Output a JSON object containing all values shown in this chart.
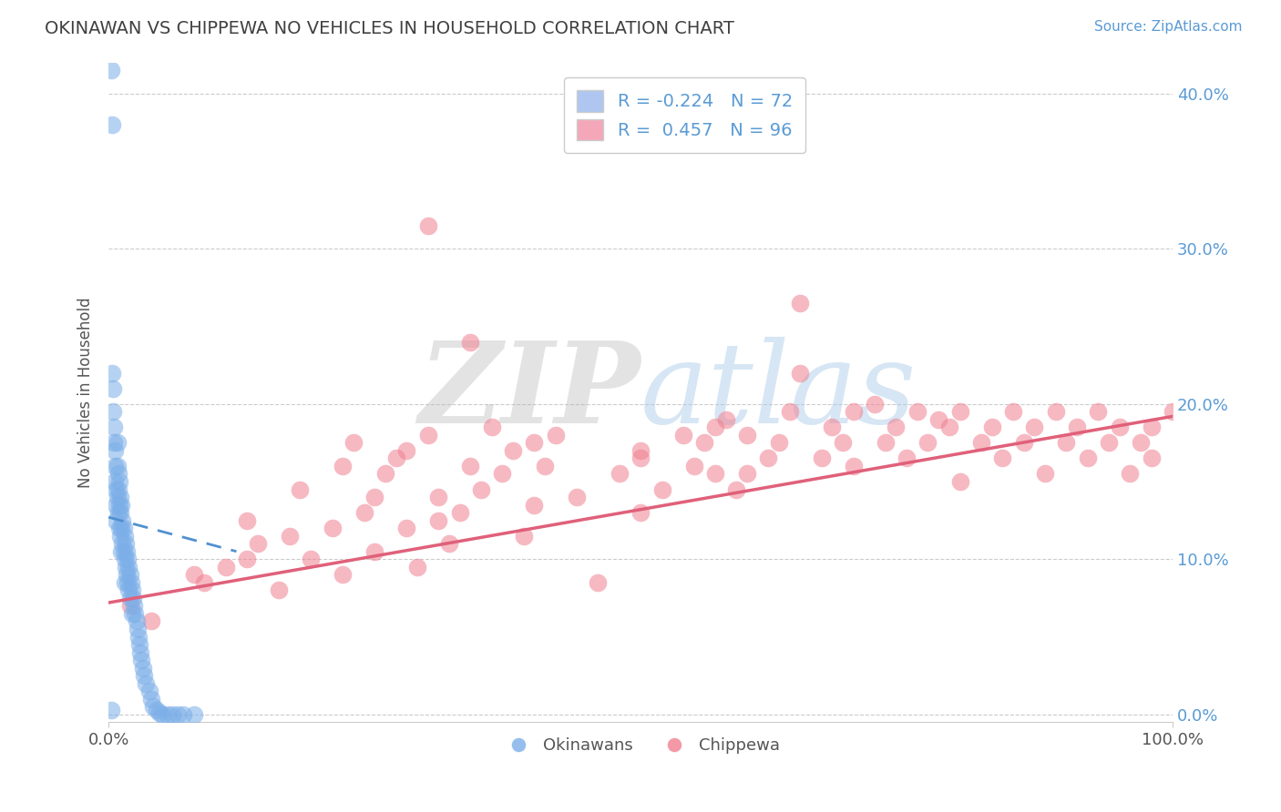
{
  "title": "OKINAWAN VS CHIPPEWA NO VEHICLES IN HOUSEHOLD CORRELATION CHART",
  "source_text": "Source: ZipAtlas.com",
  "ylabel": "No Vehicles in Household",
  "xlim": [
    0.0,
    1.0
  ],
  "ylim": [
    -0.005,
    0.42
  ],
  "x_tick_positions": [
    0.0,
    1.0
  ],
  "x_tick_labels": [
    "0.0%",
    "100.0%"
  ],
  "y_tick_positions": [
    0.0,
    0.1,
    0.2,
    0.3,
    0.4
  ],
  "y_tick_labels": [
    "0.0%",
    "10.0%",
    "20.0%",
    "30.0%",
    "40.0%"
  ],
  "okinawan_color": "#7baee8",
  "chippewa_color": "#f08090",
  "chippewa_line_color": "#e0607a",
  "okinawan_line_color": "#5090d0",
  "watermark_zip": "ZIP",
  "watermark_atlas": "atlas",
  "background_color": "#ffffff",
  "grid_color": "#cccccc",
  "title_color": "#404040",
  "axis_label_color": "#555555",
  "right_tick_color": "#5b9bd5",
  "source_color": "#5b9bd5",
  "legend_r1_label": "R = -0.224   N = 72",
  "legend_r2_label": "R =  0.457   N = 96",
  "legend_ok_patch": "#aec6f0",
  "legend_ch_patch": "#f4a7b9",
  "legend_bottom_ok": "Okinawans",
  "legend_bottom_ch": "Chippewa",
  "chippewa_line_x0": 0.0,
  "chippewa_line_y0": 0.072,
  "chippewa_line_x1": 1.0,
  "chippewa_line_y1": 0.192,
  "okinawan_line_x0": 0.0,
  "okinawan_line_y0": 0.127,
  "okinawan_line_x1": 0.12,
  "okinawan_line_y1": 0.105,
  "chippewa_scatter_x": [
    0.02,
    0.04,
    0.08,
    0.09,
    0.11,
    0.13,
    0.13,
    0.14,
    0.16,
    0.17,
    0.18,
    0.19,
    0.21,
    0.22,
    0.22,
    0.23,
    0.24,
    0.25,
    0.25,
    0.26,
    0.27,
    0.28,
    0.28,
    0.29,
    0.3,
    0.31,
    0.31,
    0.32,
    0.33,
    0.34,
    0.35,
    0.36,
    0.37,
    0.38,
    0.39,
    0.4,
    0.4,
    0.41,
    0.42,
    0.44,
    0.46,
    0.48,
    0.5,
    0.5,
    0.5,
    0.52,
    0.54,
    0.55,
    0.56,
    0.57,
    0.57,
    0.58,
    0.59,
    0.6,
    0.6,
    0.62,
    0.63,
    0.64,
    0.65,
    0.67,
    0.68,
    0.69,
    0.7,
    0.7,
    0.72,
    0.73,
    0.74,
    0.75,
    0.76,
    0.77,
    0.78,
    0.79,
    0.8,
    0.8,
    0.82,
    0.83,
    0.84,
    0.85,
    0.86,
    0.87,
    0.88,
    0.89,
    0.9,
    0.91,
    0.92,
    0.93,
    0.94,
    0.95,
    0.96,
    0.97,
    0.98,
    0.98,
    1.0,
    0.65,
    0.3,
    0.34
  ],
  "chippewa_scatter_y": [
    0.07,
    0.06,
    0.09,
    0.085,
    0.095,
    0.1,
    0.125,
    0.11,
    0.08,
    0.115,
    0.145,
    0.1,
    0.12,
    0.16,
    0.09,
    0.175,
    0.13,
    0.14,
    0.105,
    0.155,
    0.165,
    0.12,
    0.17,
    0.095,
    0.18,
    0.125,
    0.14,
    0.11,
    0.13,
    0.16,
    0.145,
    0.185,
    0.155,
    0.17,
    0.115,
    0.175,
    0.135,
    0.16,
    0.18,
    0.14,
    0.085,
    0.155,
    0.165,
    0.13,
    0.17,
    0.145,
    0.18,
    0.16,
    0.175,
    0.185,
    0.155,
    0.19,
    0.145,
    0.155,
    0.18,
    0.165,
    0.175,
    0.195,
    0.22,
    0.165,
    0.185,
    0.175,
    0.195,
    0.16,
    0.2,
    0.175,
    0.185,
    0.165,
    0.195,
    0.175,
    0.19,
    0.185,
    0.195,
    0.15,
    0.175,
    0.185,
    0.165,
    0.195,
    0.175,
    0.185,
    0.155,
    0.195,
    0.175,
    0.185,
    0.165,
    0.195,
    0.175,
    0.185,
    0.155,
    0.175,
    0.185,
    0.165,
    0.195,
    0.265,
    0.315,
    0.24
  ],
  "okinawan_scatter_x": [
    0.002,
    0.003,
    0.003,
    0.004,
    0.004,
    0.005,
    0.005,
    0.006,
    0.006,
    0.006,
    0.007,
    0.007,
    0.007,
    0.008,
    0.008,
    0.008,
    0.009,
    0.009,
    0.009,
    0.01,
    0.01,
    0.01,
    0.011,
    0.011,
    0.011,
    0.012,
    0.012,
    0.012,
    0.013,
    0.013,
    0.014,
    0.014,
    0.015,
    0.015,
    0.015,
    0.016,
    0.016,
    0.017,
    0.017,
    0.018,
    0.018,
    0.019,
    0.019,
    0.02,
    0.02,
    0.021,
    0.022,
    0.022,
    0.023,
    0.024,
    0.025,
    0.026,
    0.027,
    0.028,
    0.029,
    0.03,
    0.031,
    0.032,
    0.033,
    0.035,
    0.038,
    0.04,
    0.042,
    0.045,
    0.048,
    0.05,
    0.055,
    0.06,
    0.065,
    0.07,
    0.08,
    0.002
  ],
  "okinawan_scatter_y": [
    0.415,
    0.38,
    0.22,
    0.21,
    0.195,
    0.185,
    0.175,
    0.17,
    0.16,
    0.15,
    0.145,
    0.135,
    0.125,
    0.175,
    0.16,
    0.14,
    0.155,
    0.145,
    0.13,
    0.15,
    0.135,
    0.12,
    0.14,
    0.13,
    0.115,
    0.135,
    0.12,
    0.105,
    0.125,
    0.11,
    0.12,
    0.105,
    0.115,
    0.1,
    0.085,
    0.11,
    0.095,
    0.105,
    0.09,
    0.1,
    0.085,
    0.095,
    0.08,
    0.09,
    0.075,
    0.085,
    0.08,
    0.065,
    0.075,
    0.07,
    0.065,
    0.06,
    0.055,
    0.05,
    0.045,
    0.04,
    0.035,
    0.03,
    0.025,
    0.02,
    0.015,
    0.01,
    0.005,
    0.003,
    0.001,
    0.0,
    0.0,
    0.0,
    0.0,
    0.0,
    0.0,
    0.003
  ]
}
